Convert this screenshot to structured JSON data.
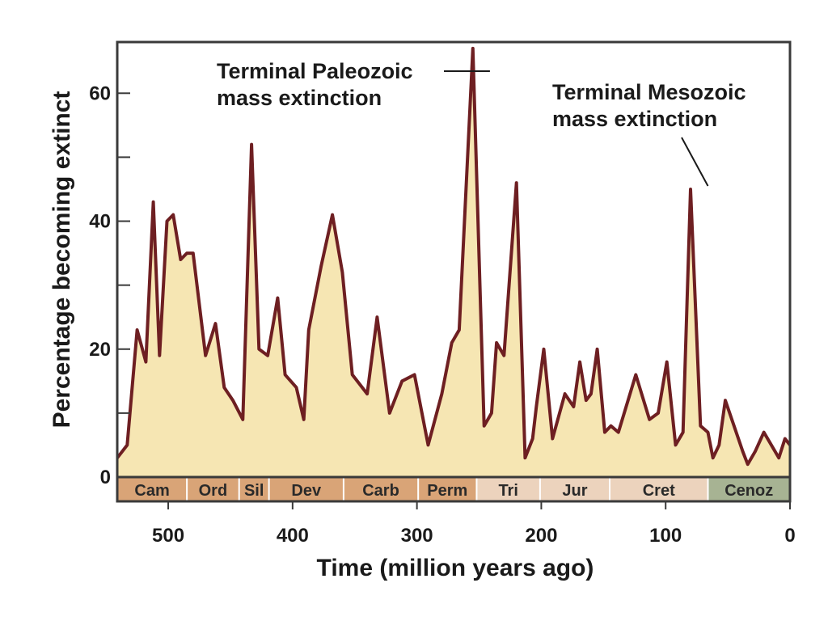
{
  "chart_data": {
    "type": "area",
    "xlabel": "Time (million years ago)",
    "ylabel": "Percentage becoming extinct",
    "xlim": [
      541,
      0
    ],
    "ylim": [
      0,
      68
    ],
    "x_ticks": [
      500,
      400,
      300,
      200,
      100,
      0
    ],
    "x_tick_labels": [
      "500",
      "400",
      "300",
      "200",
      "100",
      "0"
    ],
    "y_ticks": [
      0,
      10,
      20,
      30,
      40,
      50,
      60
    ],
    "y_tick_labels": [
      "0",
      "",
      "20",
      "",
      "40",
      "",
      "60"
    ],
    "fill_color": "#f6e6b3",
    "line_color": "#6e1f22",
    "series": [
      {
        "x": [
          541,
          533,
          525,
          518,
          512,
          507,
          501,
          496,
          490,
          485,
          480,
          470,
          462,
          455,
          448,
          440,
          433,
          427,
          420,
          412,
          406,
          397,
          391,
          387,
          377,
          368,
          360,
          352,
          340,
          332,
          322,
          312,
          302,
          291,
          280,
          272,
          266,
          255,
          246,
          240,
          236,
          230,
          220,
          213,
          207,
          204,
          198,
          191,
          181,
          174,
          169,
          164,
          160,
          155,
          149,
          144,
          138,
          124,
          113,
          106,
          99,
          92,
          86,
          80,
          72,
          66,
          62,
          57,
          52,
          38,
          34,
          28,
          21,
          9,
          4,
          0
        ],
        "y": [
          3,
          5,
          23,
          18,
          43,
          19,
          40,
          41,
          34,
          35,
          35,
          19,
          24,
          14,
          12,
          9,
          52,
          20,
          19,
          28,
          16,
          14,
          9,
          23,
          33,
          41,
          32,
          16,
          13,
          25,
          10,
          15,
          16,
          5,
          13,
          21,
          23,
          67,
          8,
          10,
          21,
          19,
          46,
          3,
          6,
          11,
          20,
          6,
          13,
          11,
          18,
          12,
          13,
          20,
          7,
          8,
          7,
          16,
          9,
          10,
          18,
          5,
          7,
          45,
          8,
          7,
          3,
          5,
          12,
          4,
          2,
          4,
          7,
          3,
          6,
          5
        ]
      }
    ],
    "periods": [
      {
        "label": "Cam",
        "start": 541,
        "end": 485,
        "color": "#d9a477"
      },
      {
        "label": "Ord",
        "start": 485,
        "end": 443,
        "color": "#d9a477"
      },
      {
        "label": "Sil",
        "start": 443,
        "end": 419,
        "color": "#d9a477"
      },
      {
        "label": "Dev",
        "start": 419,
        "end": 359,
        "color": "#d9a477"
      },
      {
        "label": "Carb",
        "start": 359,
        "end": 299,
        "color": "#d9a477"
      },
      {
        "label": "Perm",
        "start": 299,
        "end": 252,
        "color": "#d9a477"
      },
      {
        "label": "Tri",
        "start": 252,
        "end": 201,
        "color": "#ecd3bd"
      },
      {
        "label": "Jur",
        "start": 201,
        "end": 145,
        "color": "#ecd3bd"
      },
      {
        "label": "Cret",
        "start": 145,
        "end": 66,
        "color": "#ecd3bd"
      },
      {
        "label": "Cenoz",
        "start": 66,
        "end": 0,
        "color": "#a7b393"
      }
    ],
    "annotations": [
      {
        "lines": [
          "Terminal Paleozoic",
          "mass extinction"
        ],
        "target_x": 240,
        "target_y": 67
      },
      {
        "lines": [
          "Terminal Mesozoic",
          "mass extinction"
        ],
        "target_x": 66,
        "target_y": 45
      }
    ]
  }
}
